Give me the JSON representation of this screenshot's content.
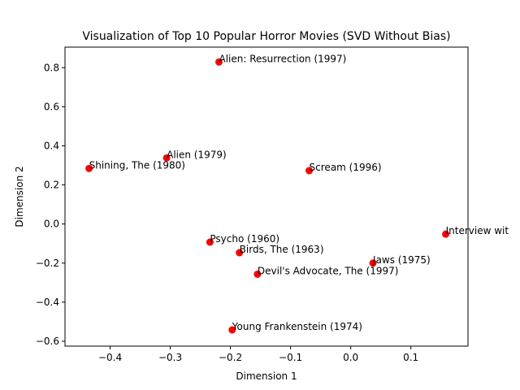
{
  "chart_data": {
    "type": "scatter",
    "title": "Visualization of Top 10 Popular Horror Movies (SVD Without Bias)",
    "xlabel": "Dimension 1",
    "ylabel": "Dimension 2",
    "xlim": [
      -0.475,
      0.195
    ],
    "ylim": [
      -0.625,
      0.905
    ],
    "xticks": [
      -0.4,
      -0.3,
      -0.2,
      -0.1,
      0.0,
      0.1
    ],
    "xtick_labels": [
      "−0.4",
      "−0.3",
      "−0.2",
      "−0.1",
      "0.0",
      "0.1"
    ],
    "yticks": [
      -0.6,
      -0.4,
      -0.2,
      0.0,
      0.2,
      0.4,
      0.6,
      0.8
    ],
    "ytick_labels": [
      "−0.6",
      "−0.4",
      "−0.2",
      "0.0",
      "0.2",
      "0.4",
      "0.6",
      "0.8"
    ],
    "grid": false,
    "marker_color": "#ff0000",
    "points": [
      {
        "label": "Alien: Resurrection (1997)",
        "x": -0.219,
        "y": 0.829
      },
      {
        "label": "Alien (1979)",
        "x": -0.306,
        "y": 0.338
      },
      {
        "label": "Shining, The (1980)",
        "x": -0.435,
        "y": 0.284
      },
      {
        "label": "Scream (1996)",
        "x": -0.069,
        "y": 0.273
      },
      {
        "label": "Interview wit",
        "x": 0.158,
        "y": -0.052
      },
      {
        "label": "Psycho (1960)",
        "x": -0.234,
        "y": -0.093
      },
      {
        "label": "Birds, The (1963)",
        "x": -0.185,
        "y": -0.147
      },
      {
        "label": "Jaws (1975)",
        "x": 0.037,
        "y": -0.2
      },
      {
        "label": "Devil's Advocate, The (1997)",
        "x": -0.155,
        "y": -0.257
      },
      {
        "label": "Young Frankenstein (1974)",
        "x": -0.197,
        "y": -0.542
      }
    ]
  }
}
